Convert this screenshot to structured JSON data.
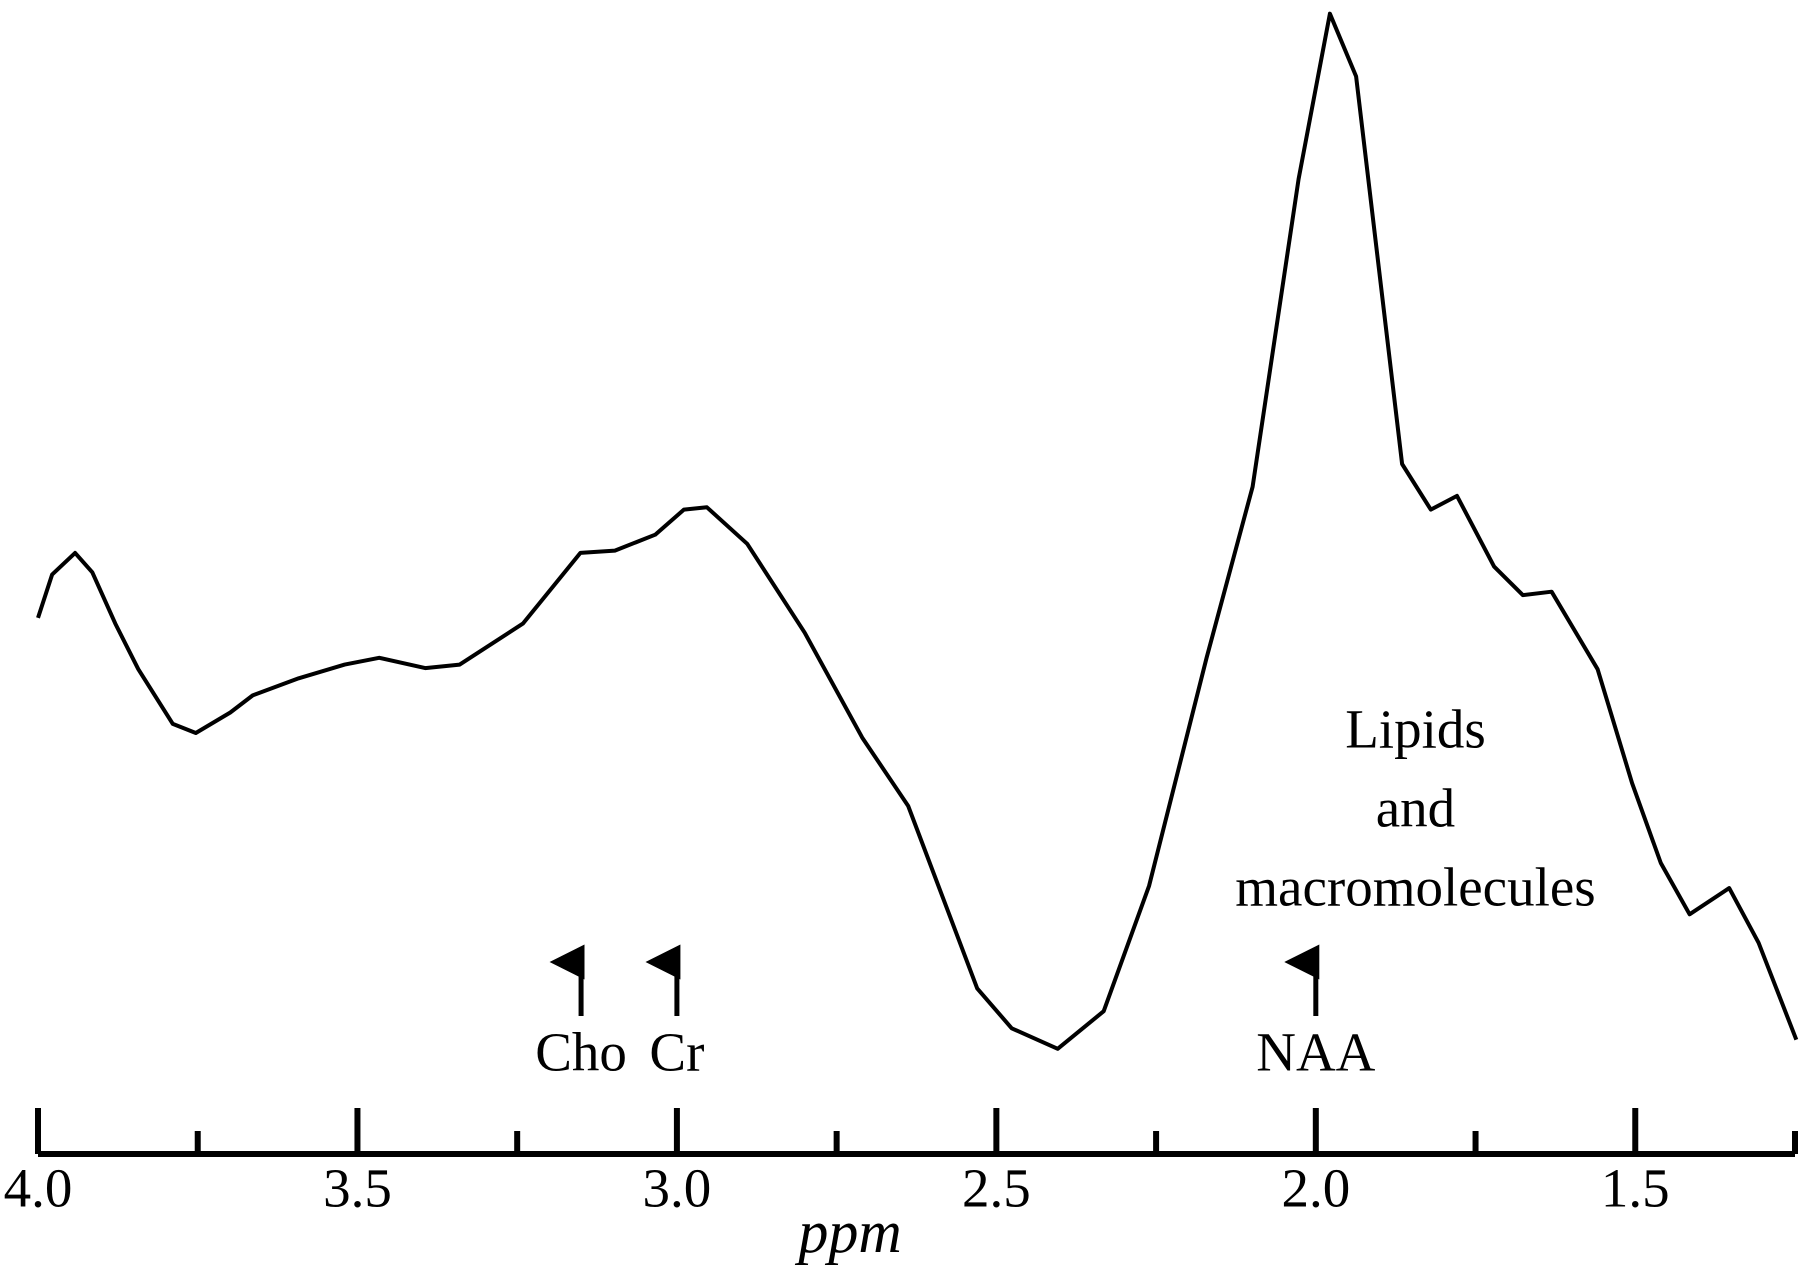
{
  "chart_data": {
    "type": "line",
    "xlabel": "ppm",
    "xlim": [
      4.0,
      1.25
    ],
    "ylim": [
      0,
      100
    ],
    "xticks": [
      {
        "value": 4.0,
        "label": "4.0"
      },
      {
        "value": 3.5,
        "label": "3.5"
      },
      {
        "value": 3.0,
        "label": "3.0"
      },
      {
        "value": 2.5,
        "label": "2.5"
      },
      {
        "value": 2.0,
        "label": "2.0"
      },
      {
        "value": 1.5,
        "label": "1.5"
      }
    ],
    "xminorticks": [
      3.75,
      3.25,
      2.75,
      2.25,
      1.75,
      1.25
    ],
    "color": "#000000",
    "x": [
      4.0,
      3.978,
      3.942,
      3.915,
      3.879,
      3.843,
      3.789,
      3.753,
      3.699,
      3.664,
      3.592,
      3.52,
      3.466,
      3.394,
      3.34,
      3.241,
      3.151,
      3.097,
      3.034,
      2.989,
      2.953,
      2.89,
      2.8,
      2.71,
      2.638,
      2.584,
      2.53,
      2.476,
      2.404,
      2.332,
      2.261,
      2.171,
      2.099,
      2.027,
      1.978,
      1.937,
      1.865,
      1.82,
      1.779,
      1.721,
      1.676,
      1.631,
      1.559,
      1.505,
      1.46,
      1.415,
      1.353,
      1.307,
      1.248
    ],
    "values": [
      46.5,
      50.3,
      52.2,
      50.5,
      46,
      42,
      37.2,
      36.4,
      38.2,
      39.7,
      41.2,
      42.4,
      43,
      42.1,
      42.4,
      46,
      52.2,
      52.4,
      53.8,
      56,
      56.2,
      53,
      45.2,
      36,
      30,
      22,
      14,
      10.5,
      8.7,
      12,
      23,
      43,
      58,
      85,
      99.5,
      94,
      60,
      56,
      57.2,
      51,
      48.5,
      48.8,
      42,
      32,
      25,
      20.5,
      22.8,
      18,
      9.5
    ],
    "annotations": [
      {
        "text": "Cho",
        "x": 3.15
      },
      {
        "text": "Cr",
        "x": 3.0
      },
      {
        "text": "NAA",
        "x": 2.0
      }
    ],
    "region_label": {
      "lines": [
        "Lipids",
        "and",
        "macromolecules"
      ],
      "x": 1.844
    }
  }
}
